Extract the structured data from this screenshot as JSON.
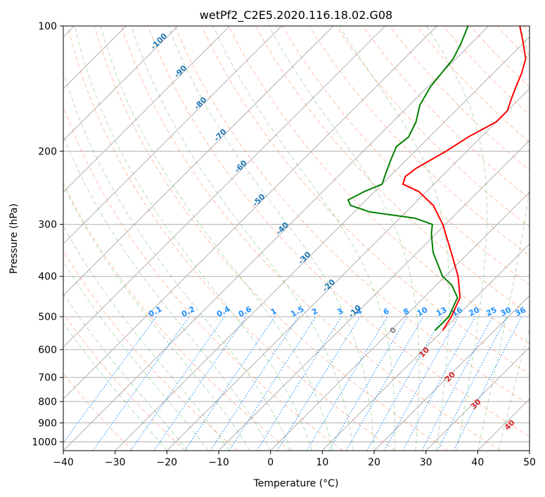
{
  "chart_data": {
    "type": "line",
    "title": "wetPf2_C2E5.2020.116.18.02.G08",
    "xlabel": "Temperature (°C)",
    "ylabel": "Pressure (hPa)",
    "xlim": [
      -40,
      50
    ],
    "ylim": [
      1050,
      100
    ],
    "x_ticks": [
      -40,
      -30,
      -20,
      -10,
      0,
      10,
      20,
      30,
      40,
      50
    ],
    "y_ticks": [
      100,
      200,
      300,
      400,
      500,
      600,
      700,
      800,
      900,
      1000
    ],
    "grid": true,
    "colors": {
      "temperature": "#ff0000",
      "dewpoint": "#008000",
      "isotherm_labels": "#1f77b4",
      "mixing_ratio": "#1e90ff",
      "dry_adiabat": "#ff7f50",
      "moist_adiabat": "#2ca02c",
      "grid": "#b0b0b0",
      "theta_e_labels": "#d62728"
    },
    "series": [
      {
        "name": "Temperature",
        "color": "#ff0000",
        "points": [
          {
            "p": 540,
            "t": 10.0
          },
          {
            "p": 500,
            "t": 9.0
          },
          {
            "p": 450,
            "t": 7.0
          },
          {
            "p": 400,
            "t": 2.5
          },
          {
            "p": 350,
            "t": -3.5
          },
          {
            "p": 300,
            "t": -10.5
          },
          {
            "p": 270,
            "t": -16.0
          },
          {
            "p": 250,
            "t": -21.5
          },
          {
            "p": 240,
            "t": -26.0
          },
          {
            "p": 230,
            "t": -27.0
          },
          {
            "p": 220,
            "t": -26.5
          },
          {
            "p": 200,
            "t": -24.0
          },
          {
            "p": 185,
            "t": -22.5
          },
          {
            "p": 170,
            "t": -20.0
          },
          {
            "p": 160,
            "t": -20.0
          },
          {
            "p": 150,
            "t": -21.5
          },
          {
            "p": 140,
            "t": -23.0
          },
          {
            "p": 130,
            "t": -24.5
          },
          {
            "p": 120,
            "t": -26.5
          },
          {
            "p": 110,
            "t": -30.0
          },
          {
            "p": 100,
            "t": -34.0
          }
        ]
      },
      {
        "name": "Dewpoint",
        "color": "#008000",
        "points": [
          {
            "p": 540,
            "t": 8.5
          },
          {
            "p": 500,
            "t": 8.5
          },
          {
            "p": 450,
            "t": 6.5
          },
          {
            "p": 420,
            "t": 3.0
          },
          {
            "p": 400,
            "t": -0.5
          },
          {
            "p": 350,
            "t": -7.0
          },
          {
            "p": 315,
            "t": -11.0
          },
          {
            "p": 300,
            "t": -12.5
          },
          {
            "p": 290,
            "t": -17.0
          },
          {
            "p": 280,
            "t": -27.0
          },
          {
            "p": 270,
            "t": -32.0
          },
          {
            "p": 262,
            "t": -33.5
          },
          {
            "p": 250,
            "t": -32.0
          },
          {
            "p": 240,
            "t": -30.0
          },
          {
            "p": 225,
            "t": -31.5
          },
          {
            "p": 210,
            "t": -33.0
          },
          {
            "p": 195,
            "t": -34.5
          },
          {
            "p": 185,
            "t": -34.0
          },
          {
            "p": 170,
            "t": -35.5
          },
          {
            "p": 155,
            "t": -38.0
          },
          {
            "p": 140,
            "t": -39.5
          },
          {
            "p": 120,
            "t": -40.5
          },
          {
            "p": 110,
            "t": -42.0
          },
          {
            "p": 100,
            "t": -44.0
          }
        ]
      }
    ],
    "isotherm_labels": [
      {
        "text": "-100",
        "t": -100,
        "p": 110
      },
      {
        "text": "-90",
        "t": -90,
        "p": 130
      },
      {
        "text": "-80",
        "t": -80,
        "p": 155
      },
      {
        "text": "-70",
        "t": -70,
        "p": 185
      },
      {
        "text": "-60",
        "t": -60,
        "p": 220
      },
      {
        "text": "-50",
        "t": -50,
        "p": 265
      },
      {
        "text": "-40",
        "t": -40,
        "p": 310
      },
      {
        "text": "-30",
        "t": -30,
        "p": 365
      },
      {
        "text": "-20",
        "t": -20,
        "p": 425
      },
      {
        "text": "-10",
        "t": -10,
        "p": 490
      }
    ],
    "mixing_ratios": [
      {
        "text": "0.1",
        "w": 0.1
      },
      {
        "text": "0.2",
        "w": 0.2
      },
      {
        "text": "0.4",
        "w": 0.4
      },
      {
        "text": "0.6",
        "w": 0.6
      },
      {
        "text": "1",
        "w": 1
      },
      {
        "text": "1.5",
        "w": 1.5
      },
      {
        "text": "2",
        "w": 2
      },
      {
        "text": "3",
        "w": 3
      },
      {
        "text": "4",
        "w": 4
      },
      {
        "text": "6",
        "w": 6
      },
      {
        "text": "8",
        "w": 8
      },
      {
        "text": "10",
        "w": 10
      },
      {
        "text": "13",
        "w": 13
      },
      {
        "text": "16",
        "w": 16
      },
      {
        "text": "20",
        "w": 20
      },
      {
        "text": "25",
        "w": 25
      },
      {
        "text": "30",
        "w": 30
      },
      {
        "text": "36",
        "w": 36
      }
    ],
    "theta_e_labels": [
      {
        "text": "0",
        "t": 24,
        "p": 545,
        "color": "#808080"
      },
      {
        "text": "10",
        "t": 30,
        "p": 615,
        "color": "#d62728"
      },
      {
        "text": "20",
        "t": 35,
        "p": 705,
        "color": "#d62728"
      },
      {
        "text": "30",
        "t": 40,
        "p": 820,
        "color": "#d62728"
      },
      {
        "text": "40",
        "t": 46.5,
        "p": 920,
        "color": "#d62728"
      }
    ]
  }
}
